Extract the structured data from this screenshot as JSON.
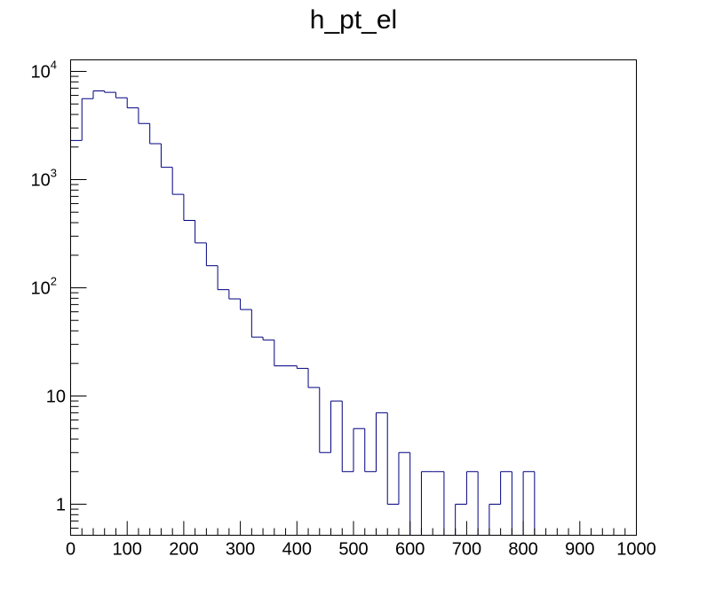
{
  "chart_data": {
    "type": "histogram",
    "title": "h_pt_el",
    "xlabel": "",
    "ylabel": "",
    "xlim": [
      0,
      1000
    ],
    "ylim": [
      0.55,
      12000
    ],
    "yscale": "log",
    "grid": false,
    "bin_width": 20,
    "x_ticks": [
      "0",
      "100",
      "200",
      "300",
      "400",
      "500",
      "600",
      "700",
      "800",
      "900",
      "1000"
    ],
    "y_ticks": [
      {
        "value": 1,
        "base": "1",
        "exp": ""
      },
      {
        "value": 10,
        "base": "10",
        "exp": ""
      },
      {
        "value": 100,
        "base": "10",
        "exp": "2"
      },
      {
        "value": 1000,
        "base": "10",
        "exp": "3"
      },
      {
        "value": 10000,
        "base": "10",
        "exp": "4"
      }
    ],
    "bin_edges": [
      0,
      20,
      40,
      60,
      80,
      100,
      120,
      140,
      160,
      180,
      200,
      220,
      240,
      260,
      280,
      300,
      320,
      340,
      360,
      380,
      400,
      420,
      440,
      460,
      480,
      500,
      520,
      540,
      560,
      580,
      600,
      620,
      640,
      660,
      680,
      700,
      720,
      740,
      760,
      780,
      800,
      820,
      840,
      860,
      880,
      900,
      920,
      940,
      960,
      980,
      1000
    ],
    "values": [
      2300,
      5600,
      6600,
      6400,
      5700,
      4600,
      3300,
      2150,
      1300,
      730,
      420,
      260,
      160,
      96,
      79,
      63,
      35,
      33,
      19,
      19,
      18,
      12,
      3,
      9,
      2,
      5,
      2,
      7,
      1,
      3,
      0,
      2,
      2,
      0,
      1,
      2,
      0,
      1,
      2,
      0,
      2,
      0,
      0,
      0,
      0,
      0,
      0,
      0,
      0,
      0
    ],
    "line_color": "#000080"
  }
}
